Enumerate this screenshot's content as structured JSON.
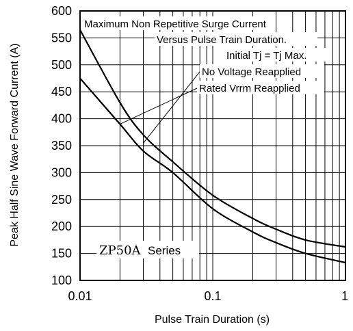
{
  "chart_data": {
    "type": "line",
    "title": "",
    "xlabel": "Pulse Train Duration (s)",
    "ylabel": "Peak Half Sine Wave Forward Current (A)",
    "x_scale": "log",
    "xlim": [
      0.01,
      1
    ],
    "ylim": [
      100,
      600
    ],
    "x_ticks": [
      0.01,
      0.1,
      1
    ],
    "x_tick_labels": [
      "0.01",
      "0.1",
      "1"
    ],
    "y_ticks": [
      100,
      150,
      200,
      250,
      300,
      350,
      400,
      450,
      500,
      550,
      600
    ],
    "y_tick_labels": [
      "100",
      "150",
      "200",
      "250",
      "300",
      "350",
      "400",
      "450",
      "500",
      "550",
      "600"
    ],
    "grid": true,
    "annotations": [
      "Maximum Non Repetitive Surge Current",
      "Versus Pulse Train Duration.",
      "Initial Tj = Tj Max.",
      "No Voltage Reapplied",
      "Rated Vrrm Reapplied"
    ],
    "series_label": {
      "part": "ZP50A",
      "suffix": "Series"
    },
    "series": [
      {
        "name": "No Voltage Reapplied",
        "x": [
          0.01,
          0.02,
          0.03,
          0.05,
          0.1,
          0.2,
          0.3,
          0.5,
          1
        ],
        "values": [
          565,
          430,
          370,
          320,
          258,
          215,
          195,
          175,
          162
        ]
      },
      {
        "name": "Rated Vrrm Reapplied",
        "x": [
          0.01,
          0.02,
          0.03,
          0.05,
          0.1,
          0.2,
          0.3,
          0.5,
          1
        ],
        "values": [
          475,
          390,
          340,
          300,
          233,
          190,
          170,
          150,
          133
        ]
      }
    ]
  }
}
